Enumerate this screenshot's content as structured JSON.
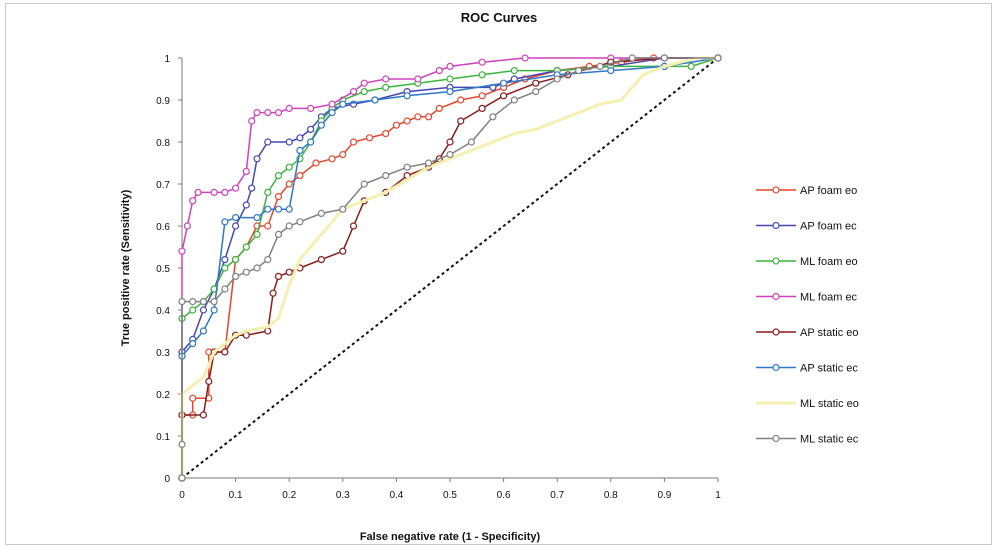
{
  "chart_data": {
    "type": "line",
    "title": "ROC Curves",
    "xlabel": "False negative rate (1 - Specificity)",
    "ylabel": "True positive rate (Sensitivity)",
    "xlim": [
      0,
      1
    ],
    "ylim": [
      0,
      1
    ],
    "xticks": [
      "0",
      "0.1",
      "0.2",
      "0.3",
      "0.4",
      "0.5",
      "0.6",
      "0.7",
      "0.8",
      "0.9",
      "1"
    ],
    "yticks": [
      "0",
      "0.1",
      "0.2",
      "0.3",
      "0.4",
      "0.5",
      "0.6",
      "0.7",
      "0.8",
      "0.9",
      "1"
    ],
    "grid": false,
    "legend_position": "right",
    "diagonal": {
      "x": [
        0,
        1
      ],
      "y": [
        0,
        1
      ],
      "color": "#111111",
      "style": "dashed"
    },
    "series": [
      {
        "name": "AP foam eo",
        "color": "#e8452c",
        "marker": "circle",
        "points": [
          [
            0,
            0
          ],
          [
            0,
            0.15
          ],
          [
            0.02,
            0.15
          ],
          [
            0.02,
            0.19
          ],
          [
            0.05,
            0.19
          ],
          [
            0.05,
            0.3
          ],
          [
            0.08,
            0.3
          ],
          [
            0.1,
            0.52
          ],
          [
            0.12,
            0.55
          ],
          [
            0.14,
            0.6
          ],
          [
            0.16,
            0.6
          ],
          [
            0.18,
            0.67
          ],
          [
            0.2,
            0.7
          ],
          [
            0.22,
            0.72
          ],
          [
            0.25,
            0.75
          ],
          [
            0.28,
            0.76
          ],
          [
            0.3,
            0.77
          ],
          [
            0.32,
            0.8
          ],
          [
            0.35,
            0.81
          ],
          [
            0.38,
            0.82
          ],
          [
            0.4,
            0.84
          ],
          [
            0.42,
            0.85
          ],
          [
            0.44,
            0.86
          ],
          [
            0.46,
            0.86
          ],
          [
            0.48,
            0.88
          ],
          [
            0.52,
            0.9
          ],
          [
            0.56,
            0.91
          ],
          [
            0.6,
            0.93
          ],
          [
            0.64,
            0.95
          ],
          [
            0.7,
            0.97
          ],
          [
            0.76,
            0.98
          ],
          [
            0.82,
            0.99
          ],
          [
            0.88,
            1
          ],
          [
            1,
            1
          ]
        ]
      },
      {
        "name": "AP foam ec",
        "color": "#4646b4",
        "marker": "circle",
        "points": [
          [
            0,
            0
          ],
          [
            0,
            0.3
          ],
          [
            0.02,
            0.33
          ],
          [
            0.04,
            0.4
          ],
          [
            0.06,
            0.45
          ],
          [
            0.08,
            0.52
          ],
          [
            0.1,
            0.6
          ],
          [
            0.12,
            0.65
          ],
          [
            0.13,
            0.69
          ],
          [
            0.14,
            0.76
          ],
          [
            0.16,
            0.8
          ],
          [
            0.2,
            0.8
          ],
          [
            0.22,
            0.81
          ],
          [
            0.24,
            0.83
          ],
          [
            0.26,
            0.86
          ],
          [
            0.28,
            0.88
          ],
          [
            0.32,
            0.89
          ],
          [
            0.36,
            0.9
          ],
          [
            0.42,
            0.92
          ],
          [
            0.5,
            0.93
          ],
          [
            0.58,
            0.93
          ],
          [
            0.62,
            0.95
          ],
          [
            0.7,
            0.97
          ],
          [
            0.8,
            0.98
          ],
          [
            0.9,
            1
          ],
          [
            1,
            1
          ]
        ]
      },
      {
        "name": "ML foam eo",
        "color": "#3cb43c",
        "marker": "circle",
        "points": [
          [
            0,
            0
          ],
          [
            0,
            0.38
          ],
          [
            0.02,
            0.4
          ],
          [
            0.04,
            0.42
          ],
          [
            0.06,
            0.45
          ],
          [
            0.08,
            0.5
          ],
          [
            0.1,
            0.52
          ],
          [
            0.12,
            0.55
          ],
          [
            0.14,
            0.58
          ],
          [
            0.16,
            0.68
          ],
          [
            0.18,
            0.72
          ],
          [
            0.2,
            0.74
          ],
          [
            0.22,
            0.76
          ],
          [
            0.24,
            0.8
          ],
          [
            0.26,
            0.85
          ],
          [
            0.28,
            0.88
          ],
          [
            0.3,
            0.9
          ],
          [
            0.34,
            0.92
          ],
          [
            0.38,
            0.93
          ],
          [
            0.44,
            0.94
          ],
          [
            0.5,
            0.95
          ],
          [
            0.56,
            0.96
          ],
          [
            0.62,
            0.97
          ],
          [
            0.7,
            0.97
          ],
          [
            0.8,
            0.98
          ],
          [
            0.9,
            0.98
          ],
          [
            0.95,
            0.98
          ],
          [
            1,
            1
          ]
        ]
      },
      {
        "name": "ML foam ec",
        "color": "#d040c0",
        "marker": "circle",
        "points": [
          [
            0,
            0
          ],
          [
            0,
            0.54
          ],
          [
            0.01,
            0.6
          ],
          [
            0.02,
            0.66
          ],
          [
            0.03,
            0.68
          ],
          [
            0.06,
            0.68
          ],
          [
            0.08,
            0.68
          ],
          [
            0.1,
            0.69
          ],
          [
            0.12,
            0.73
          ],
          [
            0.13,
            0.85
          ],
          [
            0.14,
            0.87
          ],
          [
            0.16,
            0.87
          ],
          [
            0.18,
            0.87
          ],
          [
            0.2,
            0.88
          ],
          [
            0.24,
            0.88
          ],
          [
            0.28,
            0.89
          ],
          [
            0.32,
            0.92
          ],
          [
            0.34,
            0.94
          ],
          [
            0.38,
            0.95
          ],
          [
            0.44,
            0.95
          ],
          [
            0.48,
            0.97
          ],
          [
            0.5,
            0.98
          ],
          [
            0.56,
            0.99
          ],
          [
            0.64,
            1
          ],
          [
            0.8,
            1
          ],
          [
            1,
            1
          ]
        ]
      },
      {
        "name": "AP static eo",
        "color": "#8b1a1a",
        "marker": "circle",
        "points": [
          [
            0,
            0
          ],
          [
            0,
            0.15
          ],
          [
            0.04,
            0.15
          ],
          [
            0.05,
            0.23
          ],
          [
            0.06,
            0.3
          ],
          [
            0.08,
            0.3
          ],
          [
            0.1,
            0.34
          ],
          [
            0.12,
            0.34
          ],
          [
            0.16,
            0.35
          ],
          [
            0.17,
            0.44
          ],
          [
            0.18,
            0.48
          ],
          [
            0.2,
            0.49
          ],
          [
            0.22,
            0.5
          ],
          [
            0.26,
            0.52
          ],
          [
            0.3,
            0.54
          ],
          [
            0.32,
            0.6
          ],
          [
            0.34,
            0.66
          ],
          [
            0.38,
            0.68
          ],
          [
            0.42,
            0.72
          ],
          [
            0.46,
            0.74
          ],
          [
            0.48,
            0.76
          ],
          [
            0.5,
            0.8
          ],
          [
            0.52,
            0.85
          ],
          [
            0.56,
            0.88
          ],
          [
            0.6,
            0.91
          ],
          [
            0.66,
            0.94
          ],
          [
            0.72,
            0.96
          ],
          [
            0.8,
            0.99
          ],
          [
            0.9,
            1
          ],
          [
            1,
            1
          ]
        ]
      },
      {
        "name": "AP static ec",
        "color": "#2e78c8",
        "marker": "circle",
        "points": [
          [
            0,
            0
          ],
          [
            0,
            0.29
          ],
          [
            0.02,
            0.32
          ],
          [
            0.04,
            0.35
          ],
          [
            0.06,
            0.4
          ],
          [
            0.08,
            0.61
          ],
          [
            0.1,
            0.62
          ],
          [
            0.14,
            0.62
          ],
          [
            0.16,
            0.64
          ],
          [
            0.18,
            0.64
          ],
          [
            0.2,
            0.64
          ],
          [
            0.22,
            0.78
          ],
          [
            0.24,
            0.8
          ],
          [
            0.26,
            0.84
          ],
          [
            0.28,
            0.87
          ],
          [
            0.3,
            0.89
          ],
          [
            0.36,
            0.9
          ],
          [
            0.42,
            0.91
          ],
          [
            0.5,
            0.92
          ],
          [
            0.6,
            0.94
          ],
          [
            0.7,
            0.96
          ],
          [
            0.8,
            0.97
          ],
          [
            0.9,
            0.98
          ],
          [
            1,
            1
          ]
        ]
      },
      {
        "name": "ML static eo",
        "color": "#f5f0b0",
        "marker": "none",
        "points": [
          [
            0,
            0
          ],
          [
            0,
            0.2
          ],
          [
            0.02,
            0.22
          ],
          [
            0.04,
            0.24
          ],
          [
            0.06,
            0.3
          ],
          [
            0.08,
            0.32
          ],
          [
            0.1,
            0.34
          ],
          [
            0.12,
            0.35
          ],
          [
            0.16,
            0.36
          ],
          [
            0.18,
            0.38
          ],
          [
            0.2,
            0.46
          ],
          [
            0.22,
            0.52
          ],
          [
            0.26,
            0.58
          ],
          [
            0.3,
            0.64
          ],
          [
            0.34,
            0.66
          ],
          [
            0.38,
            0.68
          ],
          [
            0.42,
            0.71
          ],
          [
            0.46,
            0.74
          ],
          [
            0.5,
            0.76
          ],
          [
            0.54,
            0.78
          ],
          [
            0.58,
            0.8
          ],
          [
            0.62,
            0.82
          ],
          [
            0.66,
            0.83
          ],
          [
            0.7,
            0.85
          ],
          [
            0.74,
            0.87
          ],
          [
            0.78,
            0.89
          ],
          [
            0.82,
            0.9
          ],
          [
            0.84,
            0.93
          ],
          [
            0.86,
            0.96
          ],
          [
            0.9,
            0.98
          ],
          [
            0.96,
            1
          ],
          [
            1,
            1
          ]
        ]
      },
      {
        "name": "ML static ec",
        "color": "#808080",
        "marker": "circle",
        "points": [
          [
            0,
            0
          ],
          [
            0,
            0.08
          ],
          [
            0,
            0.42
          ],
          [
            0.02,
            0.42
          ],
          [
            0.04,
            0.42
          ],
          [
            0.06,
            0.42
          ],
          [
            0.08,
            0.45
          ],
          [
            0.1,
            0.48
          ],
          [
            0.12,
            0.49
          ],
          [
            0.14,
            0.5
          ],
          [
            0.16,
            0.52
          ],
          [
            0.18,
            0.58
          ],
          [
            0.2,
            0.6
          ],
          [
            0.22,
            0.61
          ],
          [
            0.26,
            0.63
          ],
          [
            0.3,
            0.64
          ],
          [
            0.34,
            0.7
          ],
          [
            0.38,
            0.72
          ],
          [
            0.42,
            0.74
          ],
          [
            0.46,
            0.75
          ],
          [
            0.5,
            0.77
          ],
          [
            0.54,
            0.8
          ],
          [
            0.58,
            0.86
          ],
          [
            0.62,
            0.9
          ],
          [
            0.66,
            0.92
          ],
          [
            0.7,
            0.95
          ],
          [
            0.74,
            0.97
          ],
          [
            0.78,
            0.98
          ],
          [
            0.84,
            1
          ],
          [
            0.9,
            1
          ],
          [
            1,
            1
          ]
        ]
      }
    ]
  }
}
